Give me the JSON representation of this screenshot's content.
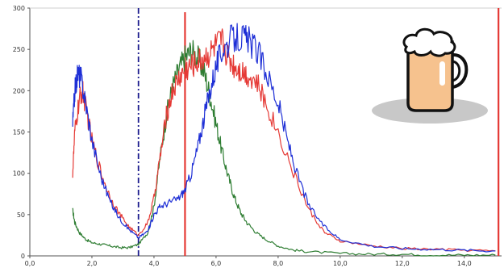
{
  "chart_data": {
    "type": "line",
    "title": "",
    "xlabel": "",
    "ylabel": "",
    "xlim": [
      0,
      15.2
    ],
    "ylim": [
      0,
      300
    ],
    "grid": false,
    "legend": "none",
    "x_ticks": [
      "0,0",
      "2,0",
      "4,0",
      "6,0",
      "8,0",
      "10,0",
      "12,0",
      "14,0"
    ],
    "x_tick_values": [
      0,
      2,
      4,
      6,
      8,
      10,
      12,
      14
    ],
    "y_ticks": [
      "0",
      "50",
      "100",
      "150",
      "200",
      "250",
      "300"
    ],
    "y_tick_values": [
      0,
      50,
      100,
      150,
      200,
      250,
      300
    ],
    "series": [
      {
        "color": "#2e7d32",
        "x": [
          1.38,
          1.45,
          1.6,
          1.8,
          2.0,
          2.3,
          2.6,
          2.9,
          3.2,
          3.5,
          3.8,
          4.0,
          4.2,
          4.4,
          4.6,
          4.8,
          5.0,
          5.2,
          5.4,
          5.6,
          5.8,
          6.0,
          6.2,
          6.4,
          6.6,
          6.8,
          7.0,
          7.3,
          7.6,
          8.0,
          8.5,
          9.0,
          10.0,
          11.0,
          12.0,
          13.0,
          14.0,
          15.0
        ],
        "values": [
          55,
          40,
          28,
          20,
          16,
          14,
          12,
          10,
          10,
          14,
          28,
          60,
          120,
          170,
          205,
          225,
          240,
          248,
          240,
          225,
          195,
          160,
          125,
          95,
          70,
          52,
          40,
          28,
          20,
          12,
          7,
          5,
          3,
          2,
          2,
          1,
          1,
          1
        ]
      },
      {
        "color": "#e53935",
        "x": [
          1.38,
          1.45,
          1.6,
          1.7,
          1.8,
          2.0,
          2.3,
          2.6,
          2.9,
          3.2,
          3.5,
          3.8,
          4.0,
          4.2,
          4.4,
          4.6,
          4.8,
          5.0,
          5.2,
          5.4,
          5.6,
          5.8,
          6.0,
          6.2,
          6.4,
          6.6,
          6.8,
          7.0,
          7.3,
          7.6,
          8.0,
          8.5,
          9.0,
          9.5,
          10.0,
          11.0,
          12.0,
          13.0,
          14.0,
          15.0
        ],
        "values": [
          100,
          150,
          190,
          200,
          180,
          140,
          100,
          70,
          50,
          35,
          25,
          40,
          70,
          120,
          170,
          200,
          215,
          225,
          230,
          235,
          240,
          245,
          255,
          260,
          240,
          230,
          225,
          220,
          210,
          185,
          150,
          100,
          55,
          28,
          18,
          12,
          9,
          8,
          7,
          6
        ]
      },
      {
        "color": "#1e2fd6",
        "x": [
          1.38,
          1.45,
          1.55,
          1.65,
          1.8,
          2.0,
          2.3,
          2.6,
          2.9,
          3.2,
          3.5,
          3.8,
          4.0,
          4.2,
          4.5,
          4.8,
          5.0,
          5.2,
          5.4,
          5.6,
          5.8,
          6.0,
          6.2,
          6.5,
          6.8,
          7.0,
          7.3,
          7.6,
          8.0,
          8.3,
          8.6,
          9.0,
          9.5,
          10.0,
          11.0,
          12.0,
          13.0,
          14.0,
          15.0
        ],
        "values": [
          160,
          200,
          222,
          215,
          185,
          140,
          95,
          65,
          45,
          32,
          22,
          30,
          50,
          60,
          65,
          70,
          80,
          100,
          130,
          165,
          200,
          230,
          250,
          262,
          265,
          262,
          250,
          225,
          185,
          140,
          100,
          60,
          35,
          20,
          12,
          9,
          8,
          7,
          6
        ]
      }
    ],
    "annotations": [
      {
        "type": "vertical-dashdot-line",
        "x": 3.5,
        "color": "#1a1a8c"
      },
      {
        "type": "vertical-line",
        "x": 5.0,
        "color": "#e53935",
        "y_top": 295
      },
      {
        "type": "vertical-line",
        "x": 15.1,
        "color": "#e53935",
        "y_top": 300
      }
    ]
  }
}
